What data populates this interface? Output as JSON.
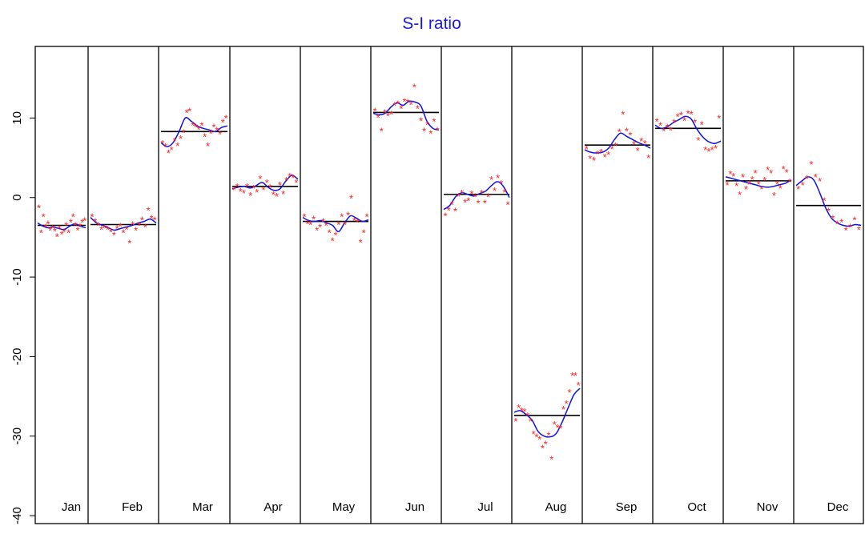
{
  "chart_data": {
    "type": "scatter",
    "title": "S-I ratio",
    "xlabel": "",
    "ylabel": "",
    "ylim": [
      -41,
      19
    ],
    "yticks": [
      -40,
      -30,
      -20,
      -10,
      0,
      10
    ],
    "grid": false,
    "legend": "none",
    "colors": {
      "title": "#1a1adc",
      "points": "#ff2020",
      "smooth": "#1010e0",
      "mean": "#000000",
      "axis": "#000000"
    },
    "months": [
      {
        "label": "Jan",
        "mean": -3.5,
        "points": [
          -1.2,
          -4.3,
          -2.3,
          -3.6,
          -3.2,
          -4.0,
          -3.7,
          -4.1,
          -4.8,
          -3.8,
          -4.5,
          -4.2,
          -3.4,
          -4.3,
          -3.0,
          -2.3,
          -3.4,
          -4.0,
          -3.5,
          -3.0,
          -2.8
        ],
        "smooth": [
          -3.2,
          -3.6,
          -3.8,
          -3.7,
          -3.9,
          -4.0,
          -3.6,
          -3.3,
          -3.6,
          -3.8
        ]
      },
      {
        "label": "Feb",
        "mean": -3.4,
        "points": [
          -2.3,
          -2.9,
          -3.4,
          -3.9,
          -3.7,
          -3.9,
          -4.2,
          -4.6,
          -3.8,
          -3.5,
          -4.3,
          -3.9,
          -5.6,
          -3.3,
          -4.0,
          -3.4,
          -2.7,
          -3.6,
          -1.5,
          -2.5,
          -2.7
        ],
        "smooth": [
          -2.5,
          -3.2,
          -3.5,
          -3.8,
          -4.1,
          -3.9,
          -3.7,
          -3.5,
          -3.2,
          -3.0,
          -2.7,
          -3.2
        ]
      },
      {
        "label": "Mar",
        "mean": 8.3,
        "points": [
          6.9,
          6.5,
          5.7,
          6.1,
          7.2,
          6.6,
          7.5,
          8.3,
          10.8,
          11.0,
          9.2,
          9.0,
          8.7,
          9.2,
          7.8,
          6.6,
          8.2,
          9.0,
          8.6,
          8.1,
          9.6,
          10.1
        ],
        "smooth": [
          6.9,
          6.4,
          6.9,
          8.3,
          10.0,
          9.6,
          9.0,
          8.7,
          8.5,
          8.3,
          8.8,
          9.0
        ]
      },
      {
        "label": "Apr",
        "mean": 1.4,
        "points": [
          1.1,
          1.5,
          0.9,
          0.7,
          1.5,
          0.4,
          1.3,
          0.8,
          2.5,
          1.1,
          2.0,
          1.4,
          0.5,
          0.3,
          1.7,
          0.6,
          2.3,
          2.8,
          2.6,
          2.0
        ],
        "smooth": [
          1.1,
          1.3,
          1.4,
          1.2,
          1.5,
          1.9,
          1.3,
          0.9,
          1.1,
          2.1,
          2.8,
          2.3
        ]
      },
      {
        "label": "May",
        "mean": -3.0,
        "points": [
          -2.3,
          -3.2,
          -3.3,
          -2.6,
          -4.0,
          -3.6,
          -2.9,
          -3.4,
          -4.3,
          -5.3,
          -4.6,
          -3.3,
          -2.3,
          -3.3,
          -2.1,
          0.0,
          -2.8,
          -3.0,
          -5.5,
          -4.3,
          -2.3
        ],
        "smooth": [
          -2.5,
          -2.9,
          -3.0,
          -2.9,
          -3.2,
          -3.5,
          -4.3,
          -3.2,
          -2.3,
          -2.6,
          -3.0,
          -2.8
        ]
      },
      {
        "label": "Jun",
        "mean": 10.7,
        "points": [
          11.0,
          10.2,
          8.5,
          10.8,
          10.4,
          10.6,
          11.7,
          11.9,
          11.3,
          12.2,
          12.1,
          11.8,
          14.0,
          11.3,
          9.8,
          8.5,
          9.3,
          8.2,
          9.7,
          8.6
        ],
        "smooth": [
          10.6,
          10.4,
          10.6,
          11.4,
          11.9,
          11.6,
          12.1,
          12.0,
          11.5,
          9.6,
          8.7,
          8.5
        ]
      },
      {
        "label": "Jul",
        "mean": 0.4,
        "points": [
          -2.2,
          -1.5,
          -0.8,
          -1.6,
          0.3,
          0.7,
          -0.5,
          -0.3,
          0.6,
          0.2,
          -0.6,
          0.7,
          -0.6,
          0.2,
          2.4,
          1.0,
          2.6,
          1.9,
          0.8,
          -0.8
        ],
        "smooth": [
          -1.5,
          -1.0,
          0.1,
          0.6,
          0.4,
          0.2,
          0.5,
          0.8,
          1.5,
          2.0,
          1.4,
          0.0
        ]
      },
      {
        "label": "Aug",
        "mean": -27.4,
        "points": [
          -28.0,
          -26.3,
          -26.7,
          -26.8,
          -27.3,
          -28.0,
          -29.6,
          -30.0,
          -30.3,
          -31.4,
          -30.9,
          -29.8,
          -32.8,
          -28.4,
          -28.8,
          -28.9,
          -26.5,
          -25.8,
          -24.4,
          -22.3,
          -22.3,
          -23.5
        ],
        "smooth": [
          -27.0,
          -26.8,
          -27.3,
          -28.0,
          -29.4,
          -30.0,
          -30.1,
          -29.7,
          -28.3,
          -26.5,
          -24.8,
          -24.0
        ]
      },
      {
        "label": "Sep",
        "mean": 6.6,
        "points": [
          6.2,
          5.0,
          4.8,
          5.6,
          5.8,
          5.2,
          5.5,
          6.2,
          6.6,
          8.4,
          10.6,
          8.5,
          8.0,
          6.8,
          6.0,
          7.2,
          6.9,
          5.1
        ],
        "smooth": [
          6.0,
          5.7,
          5.6,
          5.7,
          6.2,
          7.3,
          8.1,
          7.7,
          7.3,
          6.9,
          6.6,
          6.2
        ]
      },
      {
        "label": "Oct",
        "mean": 8.7,
        "points": [
          9.7,
          9.2,
          8.5,
          9.0,
          8.6,
          9.6,
          10.3,
          10.5,
          9.8,
          10.7,
          10.6,
          9.6,
          7.3,
          9.3,
          6.1,
          5.9,
          6.1,
          6.3,
          10.1
        ],
        "smooth": [
          9.1,
          8.7,
          8.9,
          9.4,
          9.8,
          10.2,
          9.9,
          8.6,
          7.6,
          7.0,
          6.8,
          7.1
        ]
      },
      {
        "label": "Nov",
        "mean": 2.1,
        "points": [
          1.7,
          3.1,
          2.8,
          1.6,
          0.5,
          2.7,
          1.2,
          1.8,
          2.4,
          3.2,
          1.8,
          1.2,
          2.3,
          3.6,
          3.2,
          0.4,
          1.8,
          1.3,
          3.7,
          3.3,
          2.1
        ],
        "smooth": [
          2.6,
          2.4,
          2.2,
          2.0,
          1.8,
          1.6,
          1.4,
          1.3,
          1.4,
          1.6,
          1.8,
          2.2
        ]
      },
      {
        "label": "Dec",
        "mean": -1.0,
        "points": [
          1.2,
          1.7,
          2.5,
          4.3,
          2.7,
          2.2,
          -0.3,
          -1.6,
          -2.5,
          -3.2,
          -3.0,
          -4.0,
          -3.6,
          -2.7,
          -3.9
        ],
        "smooth": [
          1.5,
          2.1,
          2.6,
          2.2,
          0.6,
          -1.3,
          -2.6,
          -3.2,
          -3.5,
          -3.6,
          -3.4,
          -3.5
        ]
      }
    ]
  }
}
